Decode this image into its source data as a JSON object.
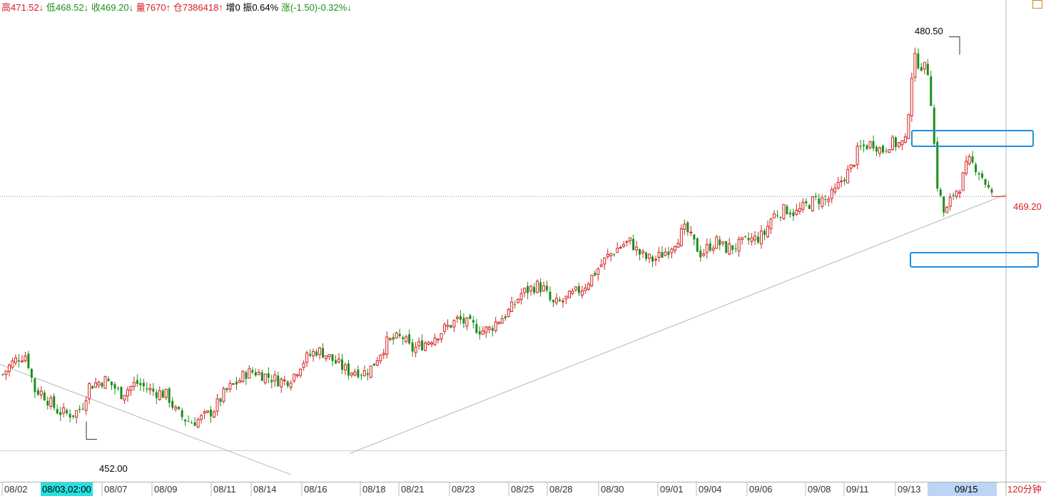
{
  "info_bar": {
    "high": "高471.52↓",
    "low": "低468.52↓",
    "close": "收469.20↓",
    "volume": "量7670↑",
    "open_interest": "仓7386418↑",
    "oi_change": "增0",
    "amplitude": "振0.64%",
    "change": "涨(-1.50)-0.32%↓"
  },
  "period": "120分钟",
  "current_price_label": "469.20",
  "high_marker": "480.50",
  "low_marker": "452.00",
  "date_axis": [
    "08/02",
    "08/03,02:00",
    "08/07",
    "08/09",
    "08/11",
    "08/14",
    "08/16",
    "08/18",
    "08/21",
    "08/23",
    "08/25",
    "08/28",
    "08/30",
    "09/01",
    "09/04",
    "09/06",
    "09/08",
    "09/11",
    "09/13",
    "09/15"
  ],
  "colors": {
    "up": "#d62020",
    "down": "#1a8f1a",
    "highlight": "#1e8ee0"
  },
  "chart_data": {
    "type": "candlestick",
    "ylim": [
      449,
      482
    ],
    "current_price": 469.2,
    "high": 480.5,
    "low": 452.0,
    "close_path": [
      456.6,
      457.3,
      457.8,
      458.0,
      455.5,
      455.3,
      454.6,
      454.0,
      453.8,
      453.8,
      454.2,
      455.8,
      456.0,
      456.2,
      455.8,
      455.2,
      455.6,
      456.0,
      455.7,
      455.4,
      455.3,
      455.1,
      454.0,
      453.5,
      453.2,
      453.4,
      453.7,
      454.2,
      455.1,
      455.7,
      456.1,
      456.7,
      456.8,
      456.6,
      456.4,
      456.2,
      456.1,
      456.5,
      457.4,
      457.9,
      458.3,
      458.1,
      457.6,
      457.2,
      456.8,
      456.9,
      456.7,
      457.1,
      458.1,
      458.9,
      459.1,
      459.2,
      458.3,
      458.6,
      458.9,
      459.3,
      459.7,
      460.1,
      460.5,
      460.2,
      460.0,
      459.7,
      459.8,
      460.4,
      460.8,
      461.4,
      462.3,
      462.6,
      462.9,
      462.6,
      461.5,
      461.7,
      462.0,
      462.4,
      462.8,
      463.5,
      464.2,
      464.9,
      465.4,
      465.8,
      466.0,
      465.2,
      464.8,
      464.7,
      465.1,
      465.6,
      466.3,
      466.9,
      465.9,
      465.1,
      465.7,
      466.0,
      465.5,
      465.6,
      465.8,
      466.1,
      466.2,
      466.5,
      467.8,
      468.1,
      468.3,
      468.0,
      468.4,
      468.8,
      469.0,
      468.9,
      469.5,
      470.5,
      471.1,
      472.5,
      472.8,
      473.0,
      472.4,
      473.0,
      472.9,
      473.0,
      479.0,
      478.5,
      478.0,
      470.2,
      467.8,
      469.3,
      470.0,
      471.7,
      471.3,
      470.4,
      469.2
    ],
    "trendlines": [
      {
        "from": [
          0,
          457.3
        ],
        "to": [
          408,
          449.5
        ]
      },
      {
        "from": [
          490,
          451.0
        ],
        "to": [
          1410,
          469.35
        ]
      }
    ]
  }
}
